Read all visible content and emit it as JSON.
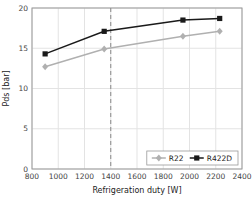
{
  "chart_data": {
    "type": "line",
    "x_label": "Refrigeration duty [W]",
    "y_label": "Pds [bar]",
    "x": [
      900,
      1350,
      1950,
      2230
    ],
    "series": [
      {
        "name": "R22",
        "color": "#b0b0b0",
        "marker": "diamond",
        "values": [
          12.7,
          14.9,
          16.5,
          17.1
        ]
      },
      {
        "name": "R422D",
        "color": "#1a1a1a",
        "marker": "square",
        "values": [
          14.3,
          17.1,
          18.5,
          18.7
        ]
      }
    ],
    "vline": {
      "x": 1400,
      "color": "#888888",
      "line_style": "dashed"
    },
    "xlim": [
      800,
      2400
    ],
    "ylim": [
      0,
      20
    ],
    "xticks": [
      800,
      1000,
      1200,
      1400,
      1600,
      1800,
      2000,
      2200,
      2400
    ],
    "yticks": [
      0,
      5,
      10,
      15,
      20
    ],
    "grid": true,
    "legend": "lower right"
  }
}
